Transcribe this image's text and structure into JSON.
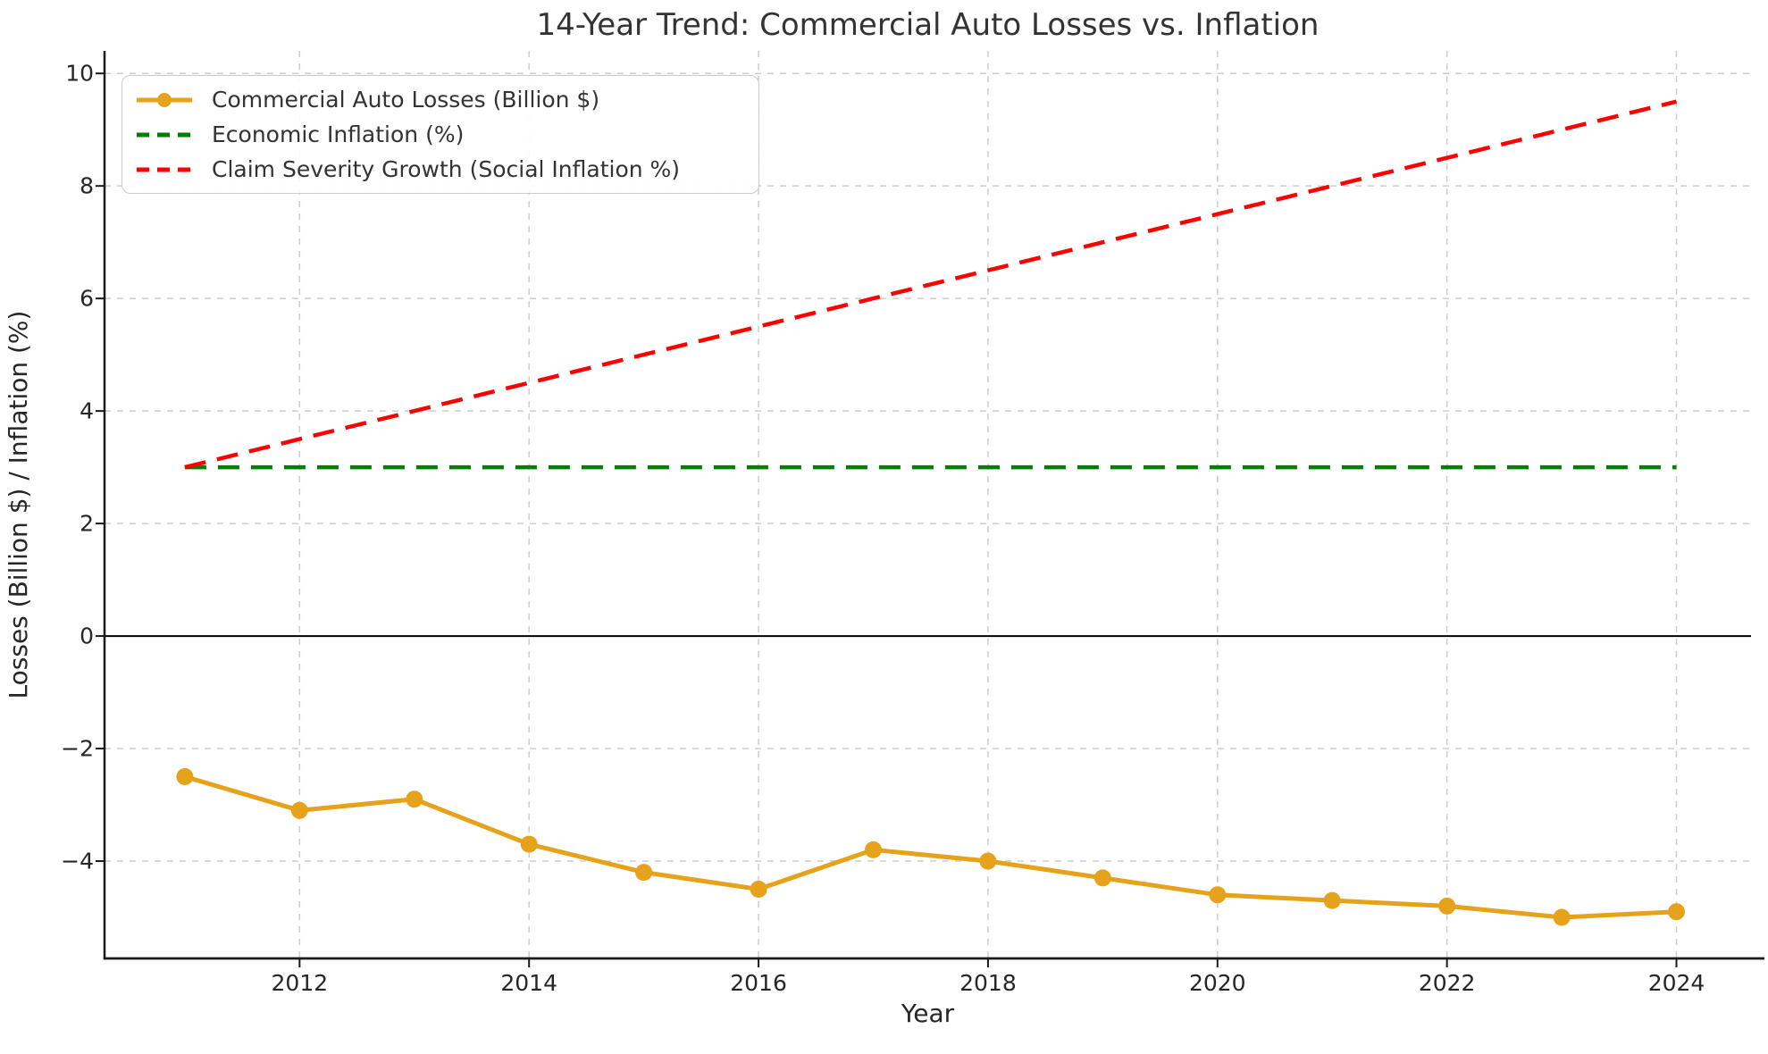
{
  "chart_data": {
    "type": "line",
    "title": "14-Year Trend: Commercial Auto Losses vs. Inflation",
    "xlabel": "Year",
    "ylabel": "Losses (Billion $) / Inflation (%)",
    "x": [
      2011,
      2012,
      2013,
      2014,
      2015,
      2016,
      2017,
      2018,
      2019,
      2020,
      2021,
      2022,
      2023,
      2024
    ],
    "series": [
      {
        "name": "Commercial Auto Losses (Billion $)",
        "color": "#E5A21A",
        "line_style": "solid",
        "marker": "circle",
        "values": [
          -2.5,
          -3.1,
          -2.9,
          -3.7,
          -4.2,
          -4.5,
          -3.8,
          -4.0,
          -4.3,
          -4.6,
          -4.7,
          -4.8,
          -5.0,
          -4.9
        ]
      },
      {
        "name": "Economic Inflation (%)",
        "color": "#008000",
        "line_style": "dashed",
        "marker": null,
        "values": [
          3.0,
          3.0,
          3.0,
          3.0,
          3.0,
          3.0,
          3.0,
          3.0,
          3.0,
          3.0,
          3.0,
          3.0,
          3.0,
          3.0
        ]
      },
      {
        "name": "Claim Severity Growth (Social Inflation %)",
        "color": "#FF0000",
        "line_style": "dashed",
        "marker": null,
        "values": [
          3.0,
          3.5,
          4.0,
          4.5,
          5.0,
          5.5,
          6.0,
          6.5,
          7.0,
          7.5,
          8.0,
          8.5,
          9.0,
          9.5
        ]
      }
    ],
    "x_ticks": [
      {
        "value": 2012,
        "label": "2012"
      },
      {
        "value": 2014,
        "label": "2014"
      },
      {
        "value": 2016,
        "label": "2016"
      },
      {
        "value": 2018,
        "label": "2018"
      },
      {
        "value": 2020,
        "label": "2020"
      },
      {
        "value": 2022,
        "label": "2022"
      },
      {
        "value": 2024,
        "label": "2024"
      }
    ],
    "y_ticks": [
      {
        "value": 10,
        "label": "10"
      },
      {
        "value": 8,
        "label": "8"
      },
      {
        "value": 6,
        "label": "6"
      },
      {
        "value": 4,
        "label": "4"
      },
      {
        "value": 2,
        "label": "2"
      },
      {
        "value": 0,
        "label": "0"
      },
      {
        "value": -2,
        "label": "−2"
      },
      {
        "value": -4,
        "label": "−4"
      }
    ],
    "xlim": [
      2010.3,
      2024.65
    ],
    "ylim": [
      -5.73,
      10.4
    ],
    "grid": true,
    "grid_color": "#cdcdcd",
    "spine_color": "#1a1a1a",
    "zero_line": true,
    "zero_line_color": "#000000",
    "legend_position": "upper left"
  }
}
